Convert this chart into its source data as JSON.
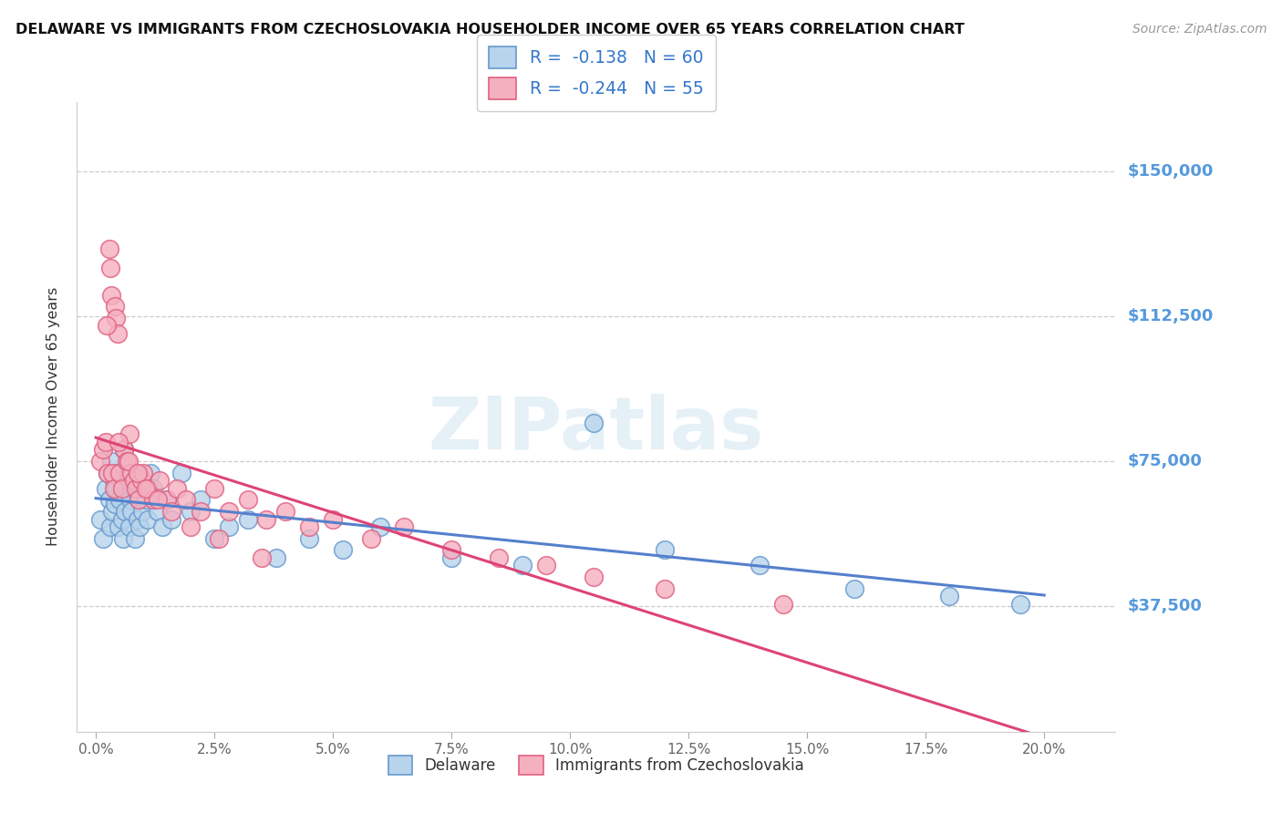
{
  "title": "DELAWARE VS IMMIGRANTS FROM CZECHOSLOVAKIA HOUSEHOLDER INCOME OVER 65 YEARS CORRELATION CHART",
  "source": "Source: ZipAtlas.com",
  "ylabel": "Householder Income Over 65 years",
  "ytick_vals": [
    37500,
    75000,
    112500,
    150000
  ],
  "ytick_labels": [
    "$37,500",
    "$75,000",
    "$112,500",
    "$150,000"
  ],
  "xtick_vals": [
    0.0,
    2.5,
    5.0,
    7.5,
    10.0,
    12.5,
    15.0,
    17.5,
    20.0
  ],
  "xmin": -0.4,
  "xmax": 21.5,
  "ymin": 5000,
  "ymax": 168000,
  "watermark": "ZIPatlas",
  "legend_r1": "R =  -0.138   N = 60",
  "legend_r2": "R =  -0.244   N = 55",
  "color_del_face": "#b8d4ec",
  "color_del_edge": "#6699cc",
  "color_cz_face": "#f5b0c0",
  "color_cz_edge": "#e06080",
  "color_line_del": "#5580cc",
  "color_line_cz": "#dd4477",
  "color_ytick": "#5599dd",
  "color_legend_text": "#3377cc",
  "delaware_x": [
    0.1,
    0.15,
    0.2,
    0.25,
    0.28,
    0.3,
    0.32,
    0.35,
    0.38,
    0.4,
    0.42,
    0.45,
    0.48,
    0.5,
    0.52,
    0.55,
    0.58,
    0.6,
    0.62,
    0.65,
    0.68,
    0.7,
    0.72,
    0.75,
    0.78,
    0.8,
    0.82,
    0.85,
    0.88,
    0.9,
    0.92,
    0.95,
    0.98,
    1.0,
    1.05,
    1.1,
    1.15,
    1.2,
    1.3,
    1.4,
    1.5,
    1.6,
    1.8,
    2.0,
    2.2,
    2.5,
    2.8,
    3.2,
    3.8,
    4.5,
    5.2,
    6.0,
    7.5,
    9.0,
    10.5,
    12.0,
    14.0,
    16.0,
    18.0,
    19.5
  ],
  "delaware_y": [
    60000,
    55000,
    68000,
    72000,
    65000,
    58000,
    75000,
    62000,
    70000,
    64000,
    68000,
    72000,
    58000,
    65000,
    70000,
    60000,
    55000,
    78000,
    62000,
    68000,
    72000,
    58000,
    65000,
    62000,
    70000,
    68000,
    55000,
    72000,
    60000,
    65000,
    58000,
    70000,
    62000,
    68000,
    65000,
    60000,
    72000,
    68000,
    62000,
    58000,
    65000,
    60000,
    72000,
    62000,
    65000,
    55000,
    58000,
    60000,
    50000,
    55000,
    52000,
    58000,
    50000,
    48000,
    85000,
    52000,
    48000,
    42000,
    40000,
    38000
  ],
  "czecho_x": [
    0.1,
    0.15,
    0.2,
    0.25,
    0.28,
    0.3,
    0.32,
    0.35,
    0.38,
    0.4,
    0.42,
    0.45,
    0.5,
    0.55,
    0.6,
    0.65,
    0.7,
    0.75,
    0.8,
    0.85,
    0.9,
    0.95,
    1.0,
    1.1,
    1.2,
    1.35,
    1.5,
    1.7,
    1.9,
    2.2,
    2.5,
    2.8,
    3.2,
    3.6,
    4.0,
    4.5,
    5.0,
    5.8,
    6.5,
    7.5,
    8.5,
    9.5,
    10.5,
    12.0,
    14.5,
    0.22,
    0.48,
    0.68,
    0.88,
    1.05,
    1.3,
    1.6,
    2.0,
    2.6,
    3.5
  ],
  "czecho_y": [
    75000,
    78000,
    80000,
    72000,
    130000,
    125000,
    118000,
    72000,
    68000,
    115000,
    112000,
    108000,
    72000,
    68000,
    78000,
    75000,
    82000,
    72000,
    70000,
    68000,
    65000,
    70000,
    72000,
    68000,
    65000,
    70000,
    65000,
    68000,
    65000,
    62000,
    68000,
    62000,
    65000,
    60000,
    62000,
    58000,
    60000,
    55000,
    58000,
    52000,
    50000,
    48000,
    45000,
    42000,
    38000,
    110000,
    80000,
    75000,
    72000,
    68000,
    65000,
    62000,
    58000,
    55000,
    50000
  ]
}
